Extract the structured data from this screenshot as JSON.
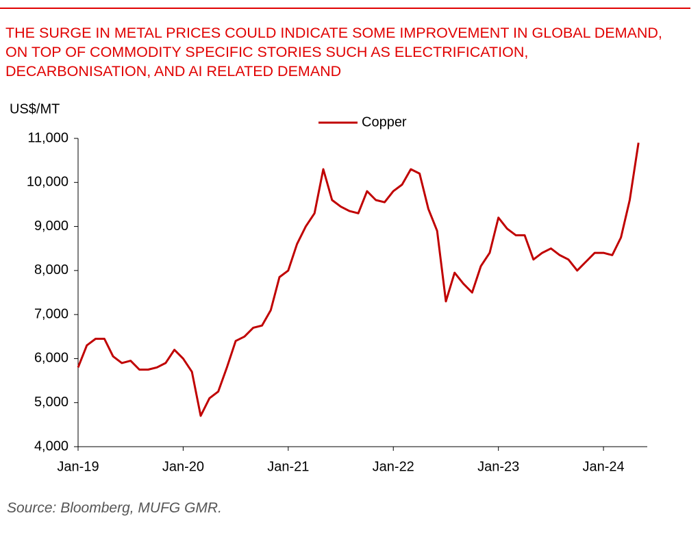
{
  "chart_data": {
    "type": "line",
    "title": "THE SURGE IN METAL PRICES COULD INDICATE SOME IMPROVEMENT IN GLOBAL DEMAND, ON TOP OF COMMODITY SPECIFIC STORIES SUCH AS ELECTRIFICATION, DECARBONISATION, AND AI RELATED DEMAND",
    "y_label": "US$/MT",
    "source": "Source: Bloomberg, MUFG GMR.",
    "x": [
      "2019-01",
      "2019-02",
      "2019-03",
      "2019-04",
      "2019-05",
      "2019-06",
      "2019-07",
      "2019-08",
      "2019-09",
      "2019-10",
      "2019-11",
      "2019-12",
      "2020-01",
      "2020-02",
      "2020-03",
      "2020-04",
      "2020-05",
      "2020-06",
      "2020-07",
      "2020-08",
      "2020-09",
      "2020-10",
      "2020-11",
      "2020-12",
      "2021-01",
      "2021-02",
      "2021-03",
      "2021-04",
      "2021-05",
      "2021-06",
      "2021-07",
      "2021-08",
      "2021-09",
      "2021-10",
      "2021-11",
      "2021-12",
      "2022-01",
      "2022-02",
      "2022-03",
      "2022-04",
      "2022-05",
      "2022-06",
      "2022-07",
      "2022-08",
      "2022-09",
      "2022-10",
      "2022-11",
      "2022-12",
      "2023-01",
      "2023-02",
      "2023-03",
      "2023-04",
      "2023-05",
      "2023-06",
      "2023-07",
      "2023-08",
      "2023-09",
      "2023-10",
      "2023-11",
      "2023-12",
      "2024-01",
      "2024-02",
      "2024-03",
      "2024-04",
      "2024-05"
    ],
    "series": [
      {
        "name": "Copper",
        "color": "#c00000",
        "values": [
          5800,
          6300,
          6450,
          6450,
          6050,
          5900,
          5950,
          5750,
          5750,
          5800,
          5900,
          6200,
          6000,
          5700,
          4700,
          5100,
          5250,
          5800,
          6400,
          6500,
          6700,
          6750,
          7100,
          7850,
          8000,
          8600,
          9000,
          9300,
          10300,
          9600,
          9450,
          9350,
          9300,
          9800,
          9600,
          9550,
          9800,
          9950,
          10300,
          10200,
          9400,
          8900,
          7300,
          7950,
          7700,
          7500,
          8100,
          8400,
          9200,
          8950,
          8800,
          8800,
          8250,
          8400,
          8500,
          8350,
          8250,
          8000,
          8200,
          8400,
          8400,
          8350,
          8750,
          9600,
          10900
        ]
      }
    ],
    "xlim": [
      "2019-01",
      "2024-06"
    ],
    "xticks": [
      {
        "value": "2019-01",
        "label": "Jan-19"
      },
      {
        "value": "2020-01",
        "label": "Jan-20"
      },
      {
        "value": "2021-01",
        "label": "Jan-21"
      },
      {
        "value": "2022-01",
        "label": "Jan-22"
      },
      {
        "value": "2023-01",
        "label": "Jan-23"
      },
      {
        "value": "2024-01",
        "label": "Jan-24"
      }
    ],
    "ylim": [
      4000,
      11000
    ],
    "yticks": [
      {
        "value": 4000,
        "label": "4,000"
      },
      {
        "value": 5000,
        "label": "5,000"
      },
      {
        "value": 6000,
        "label": "6,000"
      },
      {
        "value": 7000,
        "label": "7,000"
      },
      {
        "value": 8000,
        "label": "8,000"
      },
      {
        "value": 9000,
        "label": "9,000"
      },
      {
        "value": 10000,
        "label": "10,000"
      },
      {
        "value": 11000,
        "label": "11,000"
      }
    ],
    "legend": "top"
  }
}
